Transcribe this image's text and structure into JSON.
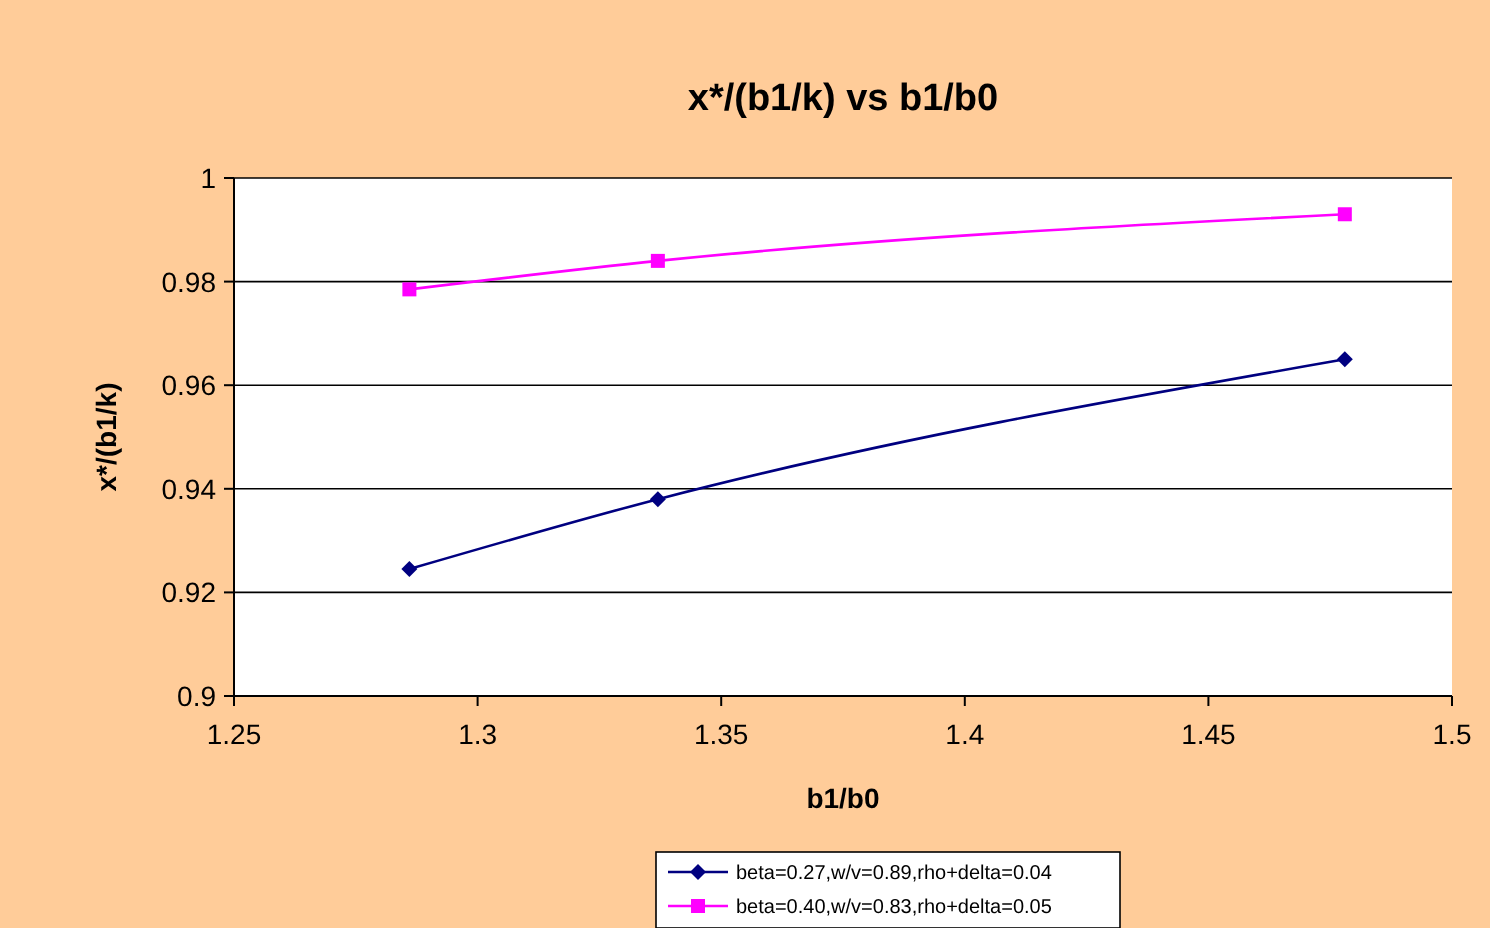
{
  "chart_data": {
    "type": "line",
    "title": "x*/(b1/k) vs b1/b0",
    "xlabel": "b1/b0",
    "ylabel": "x*/(b1/k)",
    "xlim": [
      1.25,
      1.5
    ],
    "xticks": [
      1.25,
      1.3,
      1.35,
      1.4,
      1.45,
      1.5
    ],
    "ylim": [
      0.9,
      1
    ],
    "yticks": [
      0.9,
      0.92,
      0.94,
      0.96,
      0.98,
      1
    ],
    "grid": "y",
    "legend": "bottom",
    "x": [
      1.286,
      1.337,
      1.478
    ],
    "series": [
      {
        "name": "beta=0.27,w/v=0.89,rho+delta=0.04",
        "color": "#000080",
        "marker": "diamond",
        "values": [
          0.9245,
          0.938,
          0.965
        ]
      },
      {
        "name": "beta=0.40,w/v=0.83,rho+delta=0.05",
        "color": "#ff00ff",
        "marker": "square",
        "values": [
          0.9785,
          0.984,
          0.993
        ]
      }
    ]
  }
}
